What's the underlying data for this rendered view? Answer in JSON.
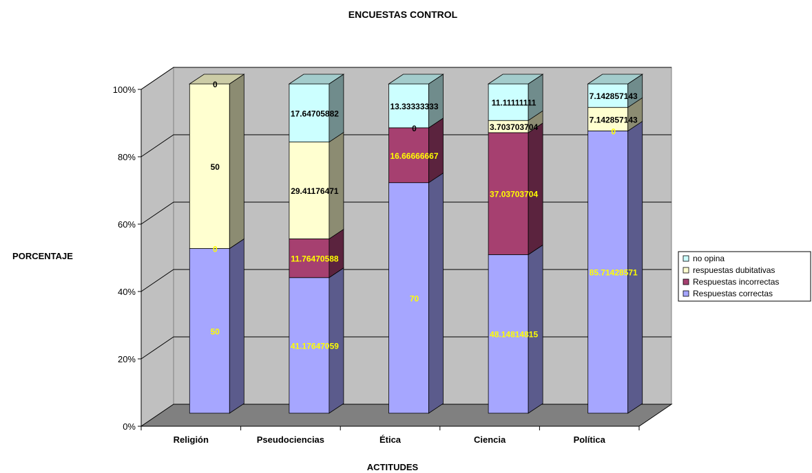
{
  "chart_data": {
    "type": "bar",
    "stacked": "percent",
    "style": "3d",
    "title": "ENCUESTAS CONTROL",
    "xlabel": "ACTITUDES",
    "ylabel": "PORCENTAJE",
    "categories": [
      "Religión",
      "Pseudociencias",
      "Ética",
      "Ciencia",
      "Política"
    ],
    "y_ticks": [
      "0%",
      "20%",
      "40%",
      "60%",
      "80%",
      "100%"
    ],
    "ylim": [
      0,
      100
    ],
    "legend_position": "right",
    "series": [
      {
        "name": "Respuestas correctas",
        "color": "#a6a6ff",
        "label_color": "#ffff00",
        "values": [
          50,
          41.17647059,
          70,
          48.14814815,
          85.71428571
        ],
        "value_labels": [
          "50",
          "41.17647059",
          "70",
          "48.14814815",
          "85.71428571"
        ]
      },
      {
        "name": "Respuestas incorrectas",
        "color": "#a64070",
        "label_color": "#ffff00",
        "values": [
          0,
          11.76470588,
          16.66666667,
          37.03703704,
          0
        ],
        "value_labels": [
          "0",
          "11.76470588",
          "16.66666667",
          "37.03703704",
          "0"
        ]
      },
      {
        "name": "respuestas dubitativas",
        "color": "#ffffd0",
        "label_color": "#000000",
        "values": [
          50,
          29.41176471,
          0,
          3.703703704,
          7.142857143
        ],
        "value_labels": [
          "50",
          "29.41176471",
          "0",
          "3.703703704",
          "7.142857143"
        ]
      },
      {
        "name": "no opina",
        "color": "#ccffff",
        "label_color": "#000000",
        "values": [
          0,
          17.64705882,
          13.33333333,
          11.11111111,
          7.142857143
        ],
        "value_labels": [
          "0",
          "17.64705882",
          "13.33333333",
          "11.11111111",
          "7.142857143"
        ]
      }
    ],
    "legend_order": [
      "no opina",
      "respuestas dubitativas",
      "Respuestas incorrectas",
      "Respuestas correctas"
    ],
    "wall_color": "#c0c0c0",
    "floor_color": "#808080",
    "grid": true
  }
}
